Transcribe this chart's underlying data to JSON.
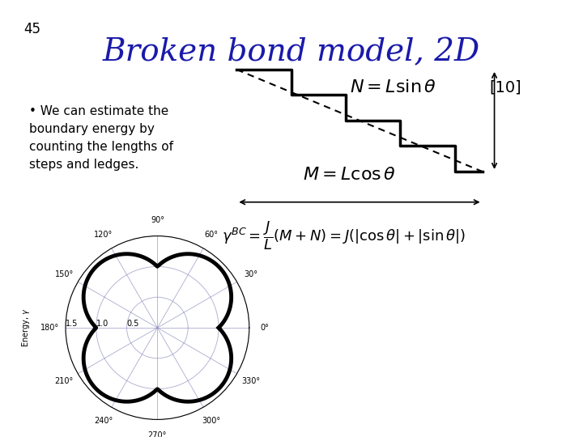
{
  "title": "Broken bond model, 2D",
  "title_color": "#1a1aaa",
  "title_fontsize": 28,
  "slide_number": "45",
  "bg_color": "#ffffff",
  "bullet_text": "We can estimate the\nboundary energy by\ncounting the lengths of\nsteps and ledges.",
  "formula_N": "$N = L\\sin\\theta$",
  "formula_M": "$M = L\\cos\\theta$",
  "formula_gamma": "$\\gamma^{BC} = \\dfrac{J}{L}(M+N) = J(|\\cos\\theta|+|\\sin\\theta|)$",
  "ref_text": "[10]",
  "polar_ylabel": "Energy, $\\gamma$",
  "polar_rmax": 1.5,
  "polar_rstep": 0.5,
  "polar_linewidth": 3.5,
  "polar_color": "#000000"
}
